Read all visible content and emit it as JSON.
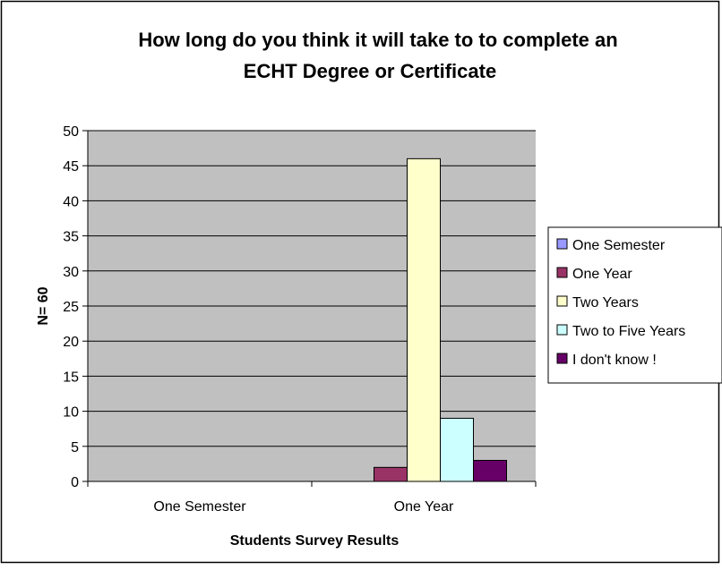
{
  "colors": {
    "plot_background": "#c0c0c0",
    "gridline": "#000000",
    "axis": "#000000",
    "border": "#000000"
  },
  "chart_data": {
    "type": "bar",
    "title_lines": [
      "How  long do you think it will take to to complete an",
      "ECHT Degree or Certificate"
    ],
    "xlabel": "Students Survey Results",
    "ylabel": "N= 60",
    "ylim": [
      0,
      50
    ],
    "ytick_step": 5,
    "y_ticks": [
      "0",
      "5",
      "10",
      "15",
      "20",
      "25",
      "30",
      "35",
      "40",
      "45",
      "50"
    ],
    "grid": true,
    "legend_position": "right",
    "categories": [
      "One Semester",
      "One Year"
    ],
    "series": [
      {
        "name": "One Semester",
        "color": "#9999ff",
        "values": [
          0,
          0
        ]
      },
      {
        "name": "One Year",
        "color": "#993366",
        "values": [
          0,
          2
        ]
      },
      {
        "name": "Two Years",
        "color": "#ffffcc",
        "values": [
          0,
          46
        ]
      },
      {
        "name": "Two to Five Years",
        "color": "#ccffff",
        "values": [
          0,
          9
        ]
      },
      {
        "name": "I don't know !",
        "color": "#660066",
        "values": [
          0,
          3
        ]
      }
    ]
  }
}
